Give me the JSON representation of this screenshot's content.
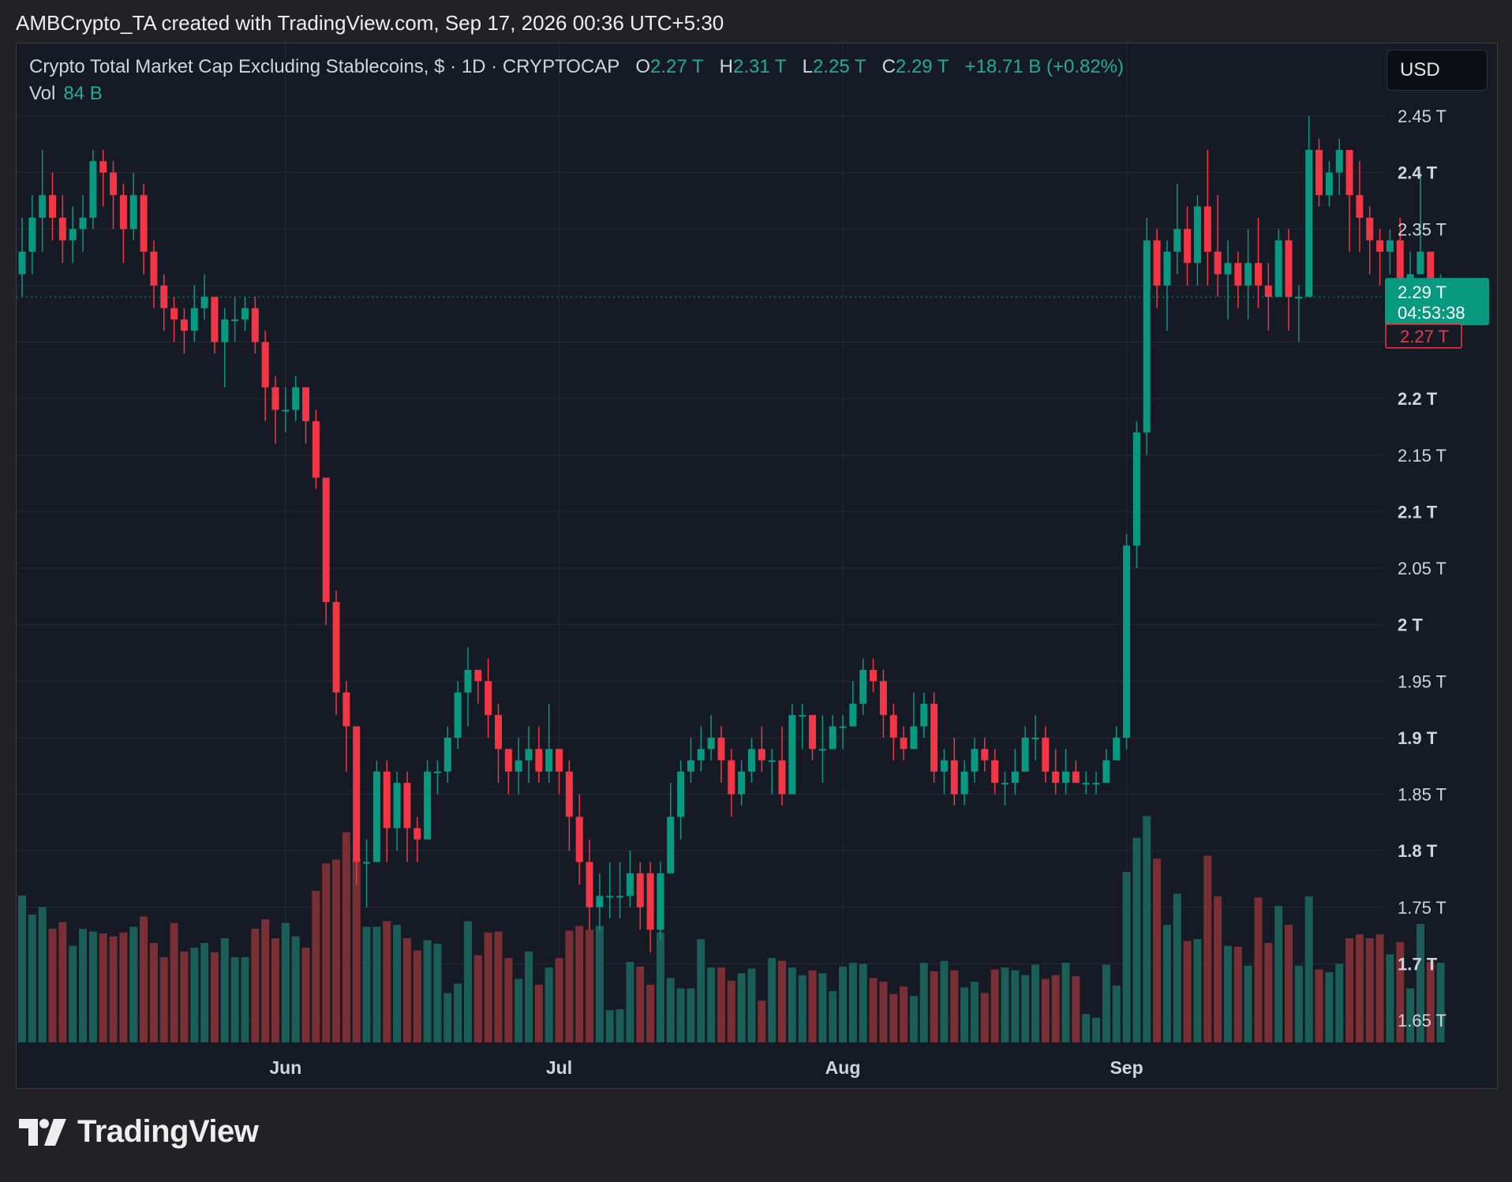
{
  "header": {
    "credit": "AMBCrypto_TA created with TradingView.com, Sep 17, 2026 00:36 UTC+5:30"
  },
  "legend": {
    "symbol": "Crypto Total Market Cap Excluding Stablecoins, $ · 1D · CRYPTOCAP",
    "open_label": "O",
    "open": "2.27 T",
    "high_label": "H",
    "high": "2.31 T",
    "low_label": "L",
    "low": "2.25 T",
    "close_label": "C",
    "close": "2.29 T",
    "change": "+18.71 B (+0.82%)",
    "vol_label": "Vol",
    "vol": "84 B"
  },
  "currency_button": "USD",
  "price_tags": {
    "last_price": "2.29 T",
    "countdown": "04:53:38",
    "open_price": "2.27 T"
  },
  "footer": {
    "brand": "TradingView"
  },
  "colors": {
    "up": "#089981",
    "down": "#f23645",
    "background": "#161a25",
    "grid": "#262a35"
  },
  "chart_data": {
    "type": "candlestick",
    "title": "Crypto Total Market Cap Excluding Stablecoins, $ · 1D · CRYPTOCAP",
    "x_ticks": [
      {
        "label": "Jun",
        "index": 26
      },
      {
        "label": "Jul",
        "index": 53
      },
      {
        "label": "Aug",
        "index": 81
      },
      {
        "label": "Sep",
        "index": 109
      }
    ],
    "y_ticks": [
      "1.65 T",
      "1.7 T",
      "1.75 T",
      "1.8 T",
      "1.85 T",
      "1.9 T",
      "1.95 T",
      "2 T",
      "2.05 T",
      "2.1 T",
      "2.15 T",
      "2.2 T",
      "2.25 T",
      "2.3 T",
      "2.35 T",
      "2.4 T",
      "2.45 T"
    ],
    "y_tick_values": [
      1.65,
      1.7,
      1.75,
      1.8,
      1.85,
      1.9,
      1.95,
      2.0,
      2.05,
      2.1,
      2.15,
      2.2,
      2.25,
      2.3,
      2.35,
      2.4,
      2.45
    ],
    "bold_ticks": [
      "1.7 T",
      "1.8 T",
      "1.9 T",
      "2 T",
      "2.1 T",
      "2.2 T",
      "2.4 T"
    ],
    "ylim": [
      1.63,
      2.49
    ],
    "volume_unit": "B",
    "close_start": 2.31,
    "candles": [
      [
        2.31,
        2.33,
        2.36,
        2.29,
        155
      ],
      [
        2.33,
        2.36,
        2.38,
        2.31,
        135
      ],
      [
        2.36,
        2.38,
        2.42,
        2.33,
        143
      ],
      [
        2.38,
        2.36,
        2.4,
        2.34,
        120
      ],
      [
        2.36,
        2.34,
        2.38,
        2.32,
        127
      ],
      [
        2.34,
        2.35,
        2.37,
        2.32,
        102
      ],
      [
        2.35,
        2.36,
        2.38,
        2.33,
        120
      ],
      [
        2.36,
        2.41,
        2.42,
        2.35,
        117
      ],
      [
        2.41,
        2.4,
        2.42,
        2.37,
        115
      ],
      [
        2.4,
        2.38,
        2.41,
        2.35,
        112
      ],
      [
        2.38,
        2.35,
        2.39,
        2.32,
        116
      ],
      [
        2.35,
        2.38,
        2.4,
        2.34,
        122
      ],
      [
        2.38,
        2.33,
        2.39,
        2.31,
        133
      ],
      [
        2.33,
        2.3,
        2.34,
        2.28,
        105
      ],
      [
        2.3,
        2.28,
        2.31,
        2.26,
        90
      ],
      [
        2.28,
        2.27,
        2.29,
        2.25,
        126
      ],
      [
        2.27,
        2.26,
        2.28,
        2.24,
        96
      ],
      [
        2.26,
        2.28,
        2.3,
        2.25,
        100
      ],
      [
        2.28,
        2.29,
        2.31,
        2.27,
        105
      ],
      [
        2.29,
        2.25,
        2.29,
        2.24,
        95
      ],
      [
        2.25,
        2.27,
        2.28,
        2.21,
        110
      ],
      [
        2.27,
        2.27,
        2.29,
        2.25,
        90
      ],
      [
        2.27,
        2.28,
        2.29,
        2.26,
        90
      ],
      [
        2.28,
        2.25,
        2.29,
        2.24,
        120
      ],
      [
        2.25,
        2.21,
        2.26,
        2.18,
        130
      ],
      [
        2.21,
        2.19,
        2.22,
        2.16,
        110
      ],
      [
        2.19,
        2.19,
        2.21,
        2.17,
        126
      ],
      [
        2.19,
        2.21,
        2.22,
        2.18,
        112
      ],
      [
        2.21,
        2.18,
        2.21,
        2.16,
        100
      ],
      [
        2.18,
        2.13,
        2.19,
        2.12,
        160
      ],
      [
        2.13,
        2.02,
        2.13,
        2.0,
        189
      ],
      [
        2.02,
        1.94,
        2.03,
        1.92,
        193
      ],
      [
        1.94,
        1.91,
        1.95,
        1.87,
        222
      ],
      [
        1.91,
        1.79,
        1.9,
        1.77,
        194
      ],
      [
        1.79,
        1.79,
        1.81,
        1.75,
        122
      ],
      [
        1.79,
        1.87,
        1.88,
        1.79,
        122
      ],
      [
        1.87,
        1.82,
        1.88,
        1.79,
        128
      ],
      [
        1.82,
        1.86,
        1.87,
        1.8,
        124
      ],
      [
        1.86,
        1.82,
        1.87,
        1.79,
        110
      ],
      [
        1.82,
        1.81,
        1.83,
        1.79,
        97
      ],
      [
        1.81,
        1.87,
        1.88,
        1.81,
        108
      ],
      [
        1.87,
        1.87,
        1.88,
        1.85,
        104
      ],
      [
        1.87,
        1.9,
        1.91,
        1.86,
        52
      ],
      [
        1.9,
        1.94,
        1.95,
        1.89,
        62
      ],
      [
        1.94,
        1.96,
        1.98,
        1.91,
        128
      ],
      [
        1.96,
        1.95,
        1.96,
        1.93,
        92
      ],
      [
        1.95,
        1.92,
        1.97,
        1.9,
        116
      ],
      [
        1.92,
        1.89,
        1.93,
        1.86,
        117
      ],
      [
        1.89,
        1.87,
        1.89,
        1.85,
        89
      ],
      [
        1.87,
        1.88,
        1.9,
        1.85,
        67
      ],
      [
        1.88,
        1.89,
        1.91,
        1.86,
        96
      ],
      [
        1.89,
        1.87,
        1.91,
        1.86,
        61
      ],
      [
        1.87,
        1.89,
        1.93,
        1.86,
        79
      ],
      [
        1.89,
        1.87,
        1.89,
        1.85,
        89
      ],
      [
        1.87,
        1.83,
        1.88,
        1.8,
        118
      ],
      [
        1.83,
        1.79,
        1.85,
        1.77,
        123
      ],
      [
        1.79,
        1.75,
        1.81,
        1.73,
        119
      ],
      [
        1.75,
        1.76,
        1.78,
        1.73,
        123
      ],
      [
        1.76,
        1.76,
        1.79,
        1.74,
        34
      ],
      [
        1.76,
        1.76,
        1.79,
        1.74,
        35
      ],
      [
        1.76,
        1.78,
        1.8,
        1.75,
        85
      ],
      [
        1.78,
        1.75,
        1.79,
        1.73,
        80
      ],
      [
        1.78,
        1.73,
        1.79,
        1.71,
        61
      ],
      [
        1.73,
        1.78,
        1.79,
        1.72,
        116
      ],
      [
        1.78,
        1.83,
        1.86,
        1.78,
        68
      ],
      [
        1.83,
        1.87,
        1.88,
        1.81,
        57
      ],
      [
        1.87,
        1.88,
        1.9,
        1.86,
        57
      ],
      [
        1.88,
        1.89,
        1.91,
        1.87,
        109
      ],
      [
        1.89,
        1.9,
        1.92,
        1.88,
        79
      ],
      [
        1.9,
        1.88,
        1.91,
        1.86,
        79
      ],
      [
        1.88,
        1.85,
        1.89,
        1.83,
        65
      ],
      [
        1.85,
        1.87,
        1.88,
        1.84,
        73
      ],
      [
        1.87,
        1.89,
        1.9,
        1.86,
        78
      ],
      [
        1.89,
        1.88,
        1.91,
        1.87,
        44
      ],
      [
        1.88,
        1.88,
        1.89,
        1.85,
        89
      ],
      [
        1.88,
        1.85,
        1.91,
        1.84,
        86
      ],
      [
        1.85,
        1.92,
        1.93,
        1.85,
        79
      ],
      [
        1.92,
        1.92,
        1.93,
        1.89,
        71
      ],
      [
        1.92,
        1.89,
        1.92,
        1.88,
        76
      ],
      [
        1.89,
        1.89,
        1.92,
        1.86,
        73
      ],
      [
        1.89,
        1.91,
        1.92,
        1.89,
        54
      ],
      [
        1.91,
        1.91,
        1.92,
        1.89,
        80
      ],
      [
        1.91,
        1.93,
        1.95,
        1.91,
        84
      ],
      [
        1.93,
        1.96,
        1.97,
        1.92,
        83
      ],
      [
        1.96,
        1.95,
        1.97,
        1.94,
        68
      ],
      [
        1.95,
        1.92,
        1.96,
        1.9,
        64
      ],
      [
        1.92,
        1.9,
        1.93,
        1.88,
        51
      ],
      [
        1.9,
        1.89,
        1.91,
        1.88,
        59
      ],
      [
        1.89,
        1.91,
        1.94,
        1.89,
        49
      ],
      [
        1.91,
        1.93,
        1.94,
        1.9,
        84
      ],
      [
        1.93,
        1.87,
        1.94,
        1.86,
        75
      ],
      [
        1.87,
        1.88,
        1.89,
        1.85,
        86
      ],
      [
        1.88,
        1.85,
        1.9,
        1.84,
        76
      ],
      [
        1.85,
        1.87,
        1.88,
        1.84,
        58
      ],
      [
        1.87,
        1.89,
        1.9,
        1.86,
        64
      ],
      [
        1.89,
        1.88,
        1.9,
        1.87,
        52
      ],
      [
        1.88,
        1.86,
        1.89,
        1.85,
        77
      ],
      [
        1.86,
        1.86,
        1.87,
        1.84,
        79
      ],
      [
        1.86,
        1.87,
        1.89,
        1.85,
        76
      ],
      [
        1.87,
        1.9,
        1.91,
        1.87,
        71
      ],
      [
        1.9,
        1.9,
        1.92,
        1.88,
        82
      ],
      [
        1.9,
        1.87,
        1.91,
        1.86,
        67
      ],
      [
        1.87,
        1.86,
        1.89,
        1.85,
        71
      ],
      [
        1.86,
        1.87,
        1.89,
        1.85,
        84
      ],
      [
        1.87,
        1.86,
        1.88,
        1.86,
        70
      ],
      [
        1.86,
        1.86,
        1.87,
        1.85,
        30
      ],
      [
        1.86,
        1.86,
        1.87,
        1.85,
        26
      ],
      [
        1.86,
        1.88,
        1.89,
        1.86,
        82
      ],
      [
        1.88,
        1.9,
        1.91,
        1.88,
        60
      ],
      [
        1.9,
        2.07,
        2.08,
        1.89,
        180
      ],
      [
        2.07,
        2.17,
        2.18,
        2.05,
        216
      ],
      [
        2.17,
        2.34,
        2.36,
        2.15,
        239
      ],
      [
        2.34,
        2.3,
        2.35,
        2.28,
        194
      ],
      [
        2.3,
        2.33,
        2.34,
        2.26,
        124
      ],
      [
        2.33,
        2.35,
        2.39,
        2.31,
        157
      ],
      [
        2.35,
        2.32,
        2.37,
        2.3,
        107
      ],
      [
        2.32,
        2.37,
        2.38,
        2.3,
        109
      ],
      [
        2.37,
        2.33,
        2.42,
        2.3,
        197
      ],
      [
        2.33,
        2.31,
        2.38,
        2.29,
        154
      ],
      [
        2.31,
        2.32,
        2.34,
        2.27,
        102
      ],
      [
        2.32,
        2.3,
        2.33,
        2.28,
        101
      ],
      [
        2.3,
        2.32,
        2.35,
        2.27,
        81
      ],
      [
        2.32,
        2.3,
        2.36,
        2.28,
        153
      ],
      [
        2.3,
        2.29,
        2.32,
        2.26,
        105
      ],
      [
        2.29,
        2.34,
        2.35,
        2.29,
        144
      ],
      [
        2.34,
        2.29,
        2.35,
        2.26,
        124
      ],
      [
        2.29,
        2.29,
        2.3,
        2.25,
        81
      ],
      [
        2.29,
        2.42,
        2.45,
        2.3,
        154
      ],
      [
        2.42,
        2.38,
        2.43,
        2.37,
        77
      ],
      [
        2.38,
        2.4,
        2.41,
        2.37,
        74
      ],
      [
        2.4,
        2.42,
        2.43,
        2.38,
        83
      ],
      [
        2.42,
        2.38,
        2.42,
        2.33,
        110
      ],
      [
        2.38,
        2.36,
        2.41,
        2.33,
        114
      ],
      [
        2.36,
        2.34,
        2.37,
        2.31,
        110
      ],
      [
        2.34,
        2.33,
        2.35,
        2.3,
        114
      ],
      [
        2.33,
        2.34,
        2.35,
        2.31,
        93
      ],
      [
        2.34,
        2.29,
        2.36,
        2.28,
        106
      ],
      [
        2.29,
        2.31,
        2.33,
        2.28,
        57
      ],
      [
        2.31,
        2.33,
        2.4,
        2.31,
        125
      ],
      [
        2.33,
        2.29,
        2.33,
        2.26,
        85
      ],
      [
        2.27,
        2.29,
        2.31,
        2.25,
        84
      ]
    ]
  }
}
